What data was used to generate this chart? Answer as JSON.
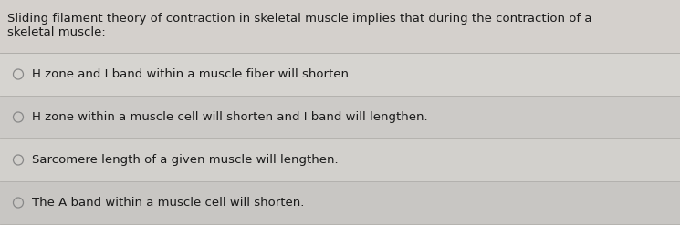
{
  "title_line1": "Sliding filament theory of contraction in skeletal muscle implies that during the contraction of a",
  "title_line2": "skeletal muscle:",
  "options": [
    "H zone and I band within a muscle fiber will shorten.",
    "H zone within a muscle cell will shorten and I band will lengthen.",
    "Sarcomere length of a given muscle will lengthen.",
    "The A band within a muscle cell will shorten."
  ],
  "background_color": "#d4d0cc",
  "row_color_odd": "#cccac6",
  "row_color_even": "#d0ceca",
  "title_font_size": 9.5,
  "option_font_size": 9.5,
  "text_color": "#1a1a1a",
  "circle_color": "#888888",
  "divider_color": "#b0aeaa",
  "divider_linewidth": 0.6
}
